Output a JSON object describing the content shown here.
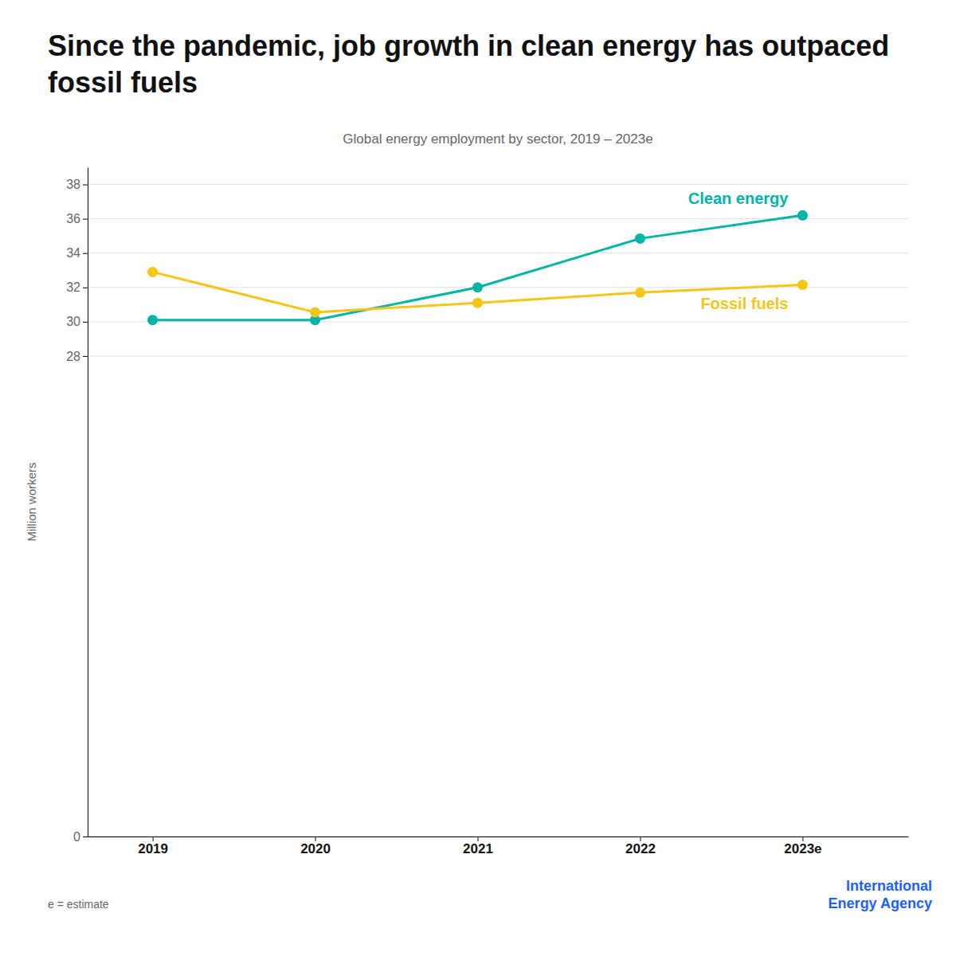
{
  "chart_data": {
    "type": "line",
    "title": "Since the pandemic, job growth in clean energy has outpaced fossil fuels",
    "subtitle": "Global energy employment by sector, 2019 – 2023e",
    "y_label": "Million workers",
    "x": [
      2019,
      2020,
      2021,
      2022,
      2023
    ],
    "xlim": [
      2018.6,
      2023.65
    ],
    "xticks": [
      2019,
      2020,
      2021,
      2022,
      {
        "value": 2023,
        "label": "2023e"
      }
    ],
    "ylim": [
      0,
      39
    ],
    "yticks": [
      0,
      28,
      30,
      32,
      34,
      36,
      38
    ],
    "grid": true,
    "marker": "circle",
    "series": [
      {
        "name": "Clean energy",
        "color": "#00B4A6",
        "values": [
          30.1,
          30.1,
          32.0,
          34.85,
          36.2
        ]
      },
      {
        "name": "Fossil fuels",
        "color": "#F5C518",
        "values": [
          32.9,
          30.55,
          31.1,
          31.7,
          32.15
        ]
      }
    ],
    "annotations": [
      "e = estimate",
      "International\nEnergy Agency"
    ]
  }
}
